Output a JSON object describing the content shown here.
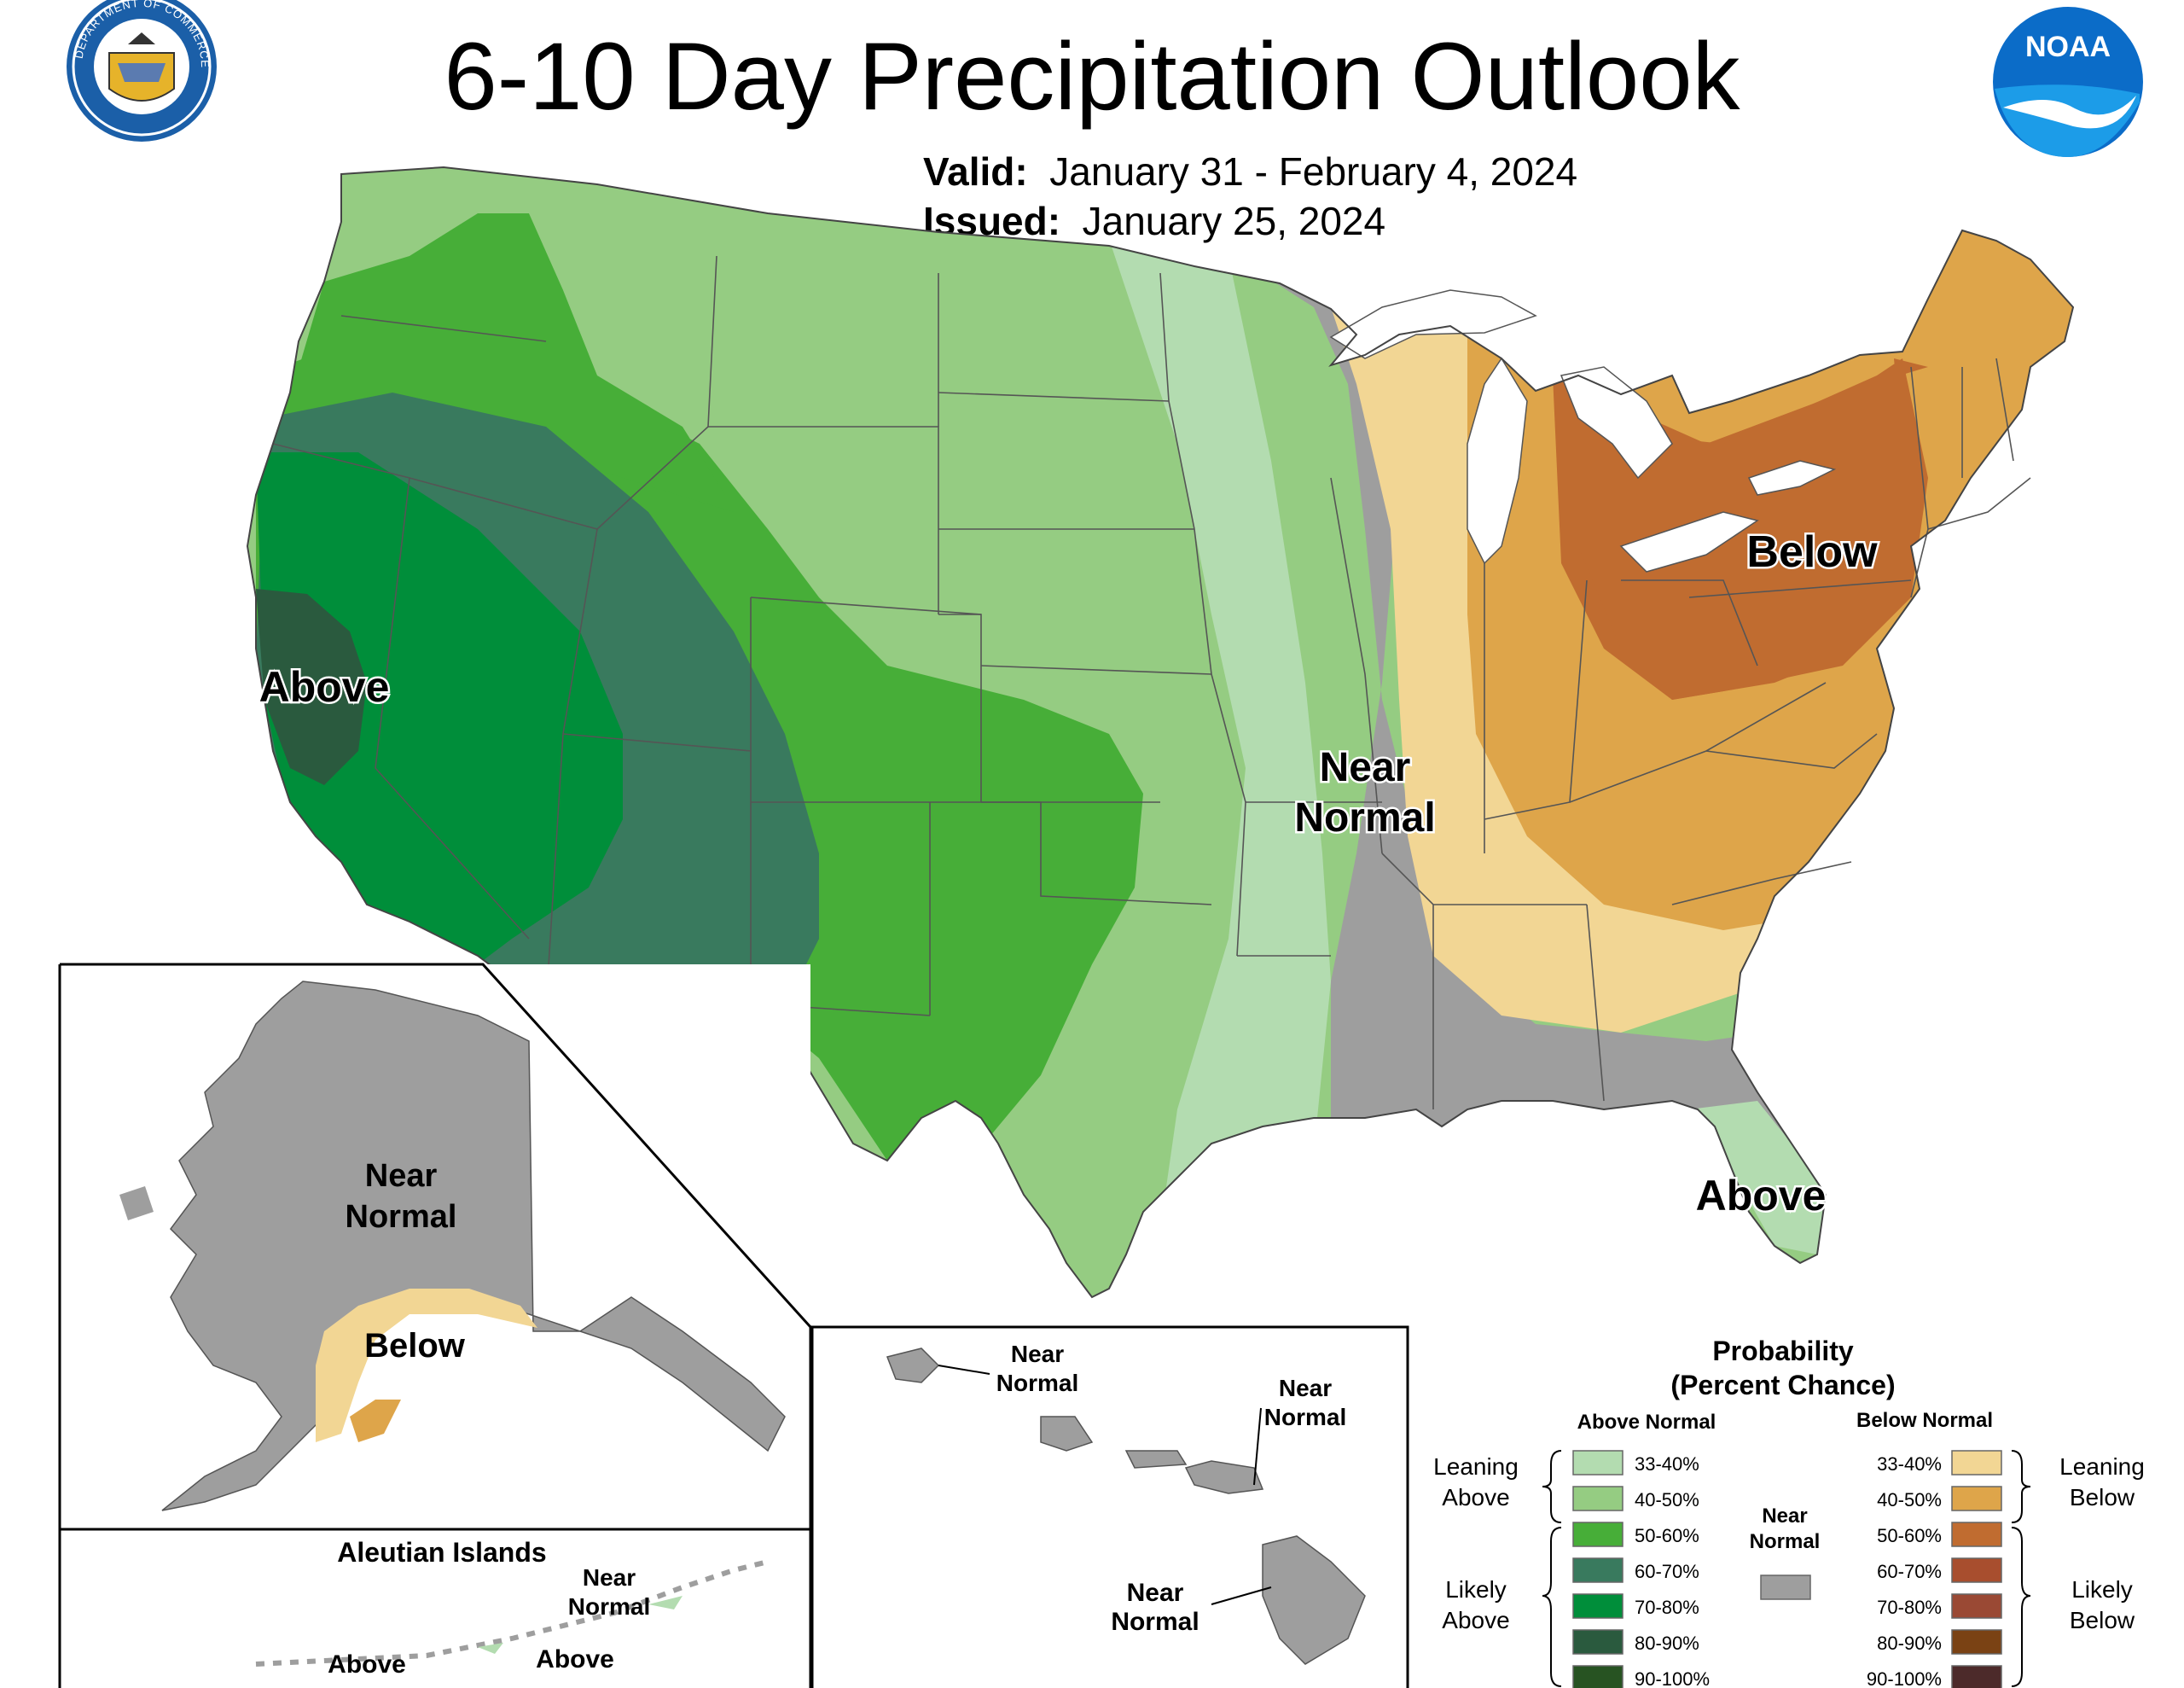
{
  "header": {
    "title": "6-10 Day Precipitation Outlook",
    "valid_label": "Valid:",
    "valid_value": "January 31 - February 4, 2024",
    "issued_label": "Issued:",
    "issued_value": "January 25, 2024",
    "commerce_seal_text": "DEPARTMENT OF COMMERCE · UNITED STATES OF AMERICA",
    "noaa_logo_text": "NOAA"
  },
  "map_labels": {
    "west_above": "Above",
    "central_near_normal_1": "Near",
    "central_near_normal_2": "Normal",
    "northeast_below": "Below",
    "florida_above": "Above"
  },
  "alaska": {
    "near_normal_1": "Near",
    "near_normal_2": "Normal",
    "below": "Below",
    "aleutian_title": "Aleutian Islands",
    "aleutian_near_1": "Near",
    "aleutian_near_2": "Normal",
    "aleutian_above_1": "Above",
    "aleutian_above_2": "Above"
  },
  "hawaii": {
    "kauai_1": "Near",
    "kauai_2": "Normal",
    "maui_1": "Near",
    "maui_2": "Normal",
    "big_island_1": "Near",
    "big_island_2": "Normal"
  },
  "legend": {
    "title_1": "Probability",
    "title_2": "(Percent Chance)",
    "above_header": "Above Normal",
    "below_header": "Below Normal",
    "near_1": "Near",
    "near_2": "Normal",
    "leaning_above_1": "Leaning",
    "leaning_above_2": "Above",
    "likely_above_1": "Likely",
    "likely_above_2": "Above",
    "leaning_below_1": "Leaning",
    "leaning_below_2": "Below",
    "likely_below_1": "Likely",
    "likely_below_2": "Below",
    "above": [
      {
        "label": "33-40%",
        "color": "#b3dcb0"
      },
      {
        "label": "40-50%",
        "color": "#95cc82"
      },
      {
        "label": "50-60%",
        "color": "#47ae38"
      },
      {
        "label": "60-70%",
        "color": "#397a5e"
      },
      {
        "label": "70-80%",
        "color": "#008e3a"
      },
      {
        "label": "80-90%",
        "color": "#2a5a3e"
      },
      {
        "label": "90-100%",
        "color": "#275322"
      }
    ],
    "below": [
      {
        "label": "33-40%",
        "color": "#f2d694"
      },
      {
        "label": "40-50%",
        "color": "#dea54a"
      },
      {
        "label": "50-60%",
        "color": "#c06c30"
      },
      {
        "label": "60-70%",
        "color": "#a84e2e"
      },
      {
        "label": "70-80%",
        "color": "#9a4934"
      },
      {
        "label": "80-90%",
        "color": "#7a4214"
      },
      {
        "label": "90-100%",
        "color": "#4c2a2a"
      }
    ],
    "near_color": "#9e9e9e"
  }
}
